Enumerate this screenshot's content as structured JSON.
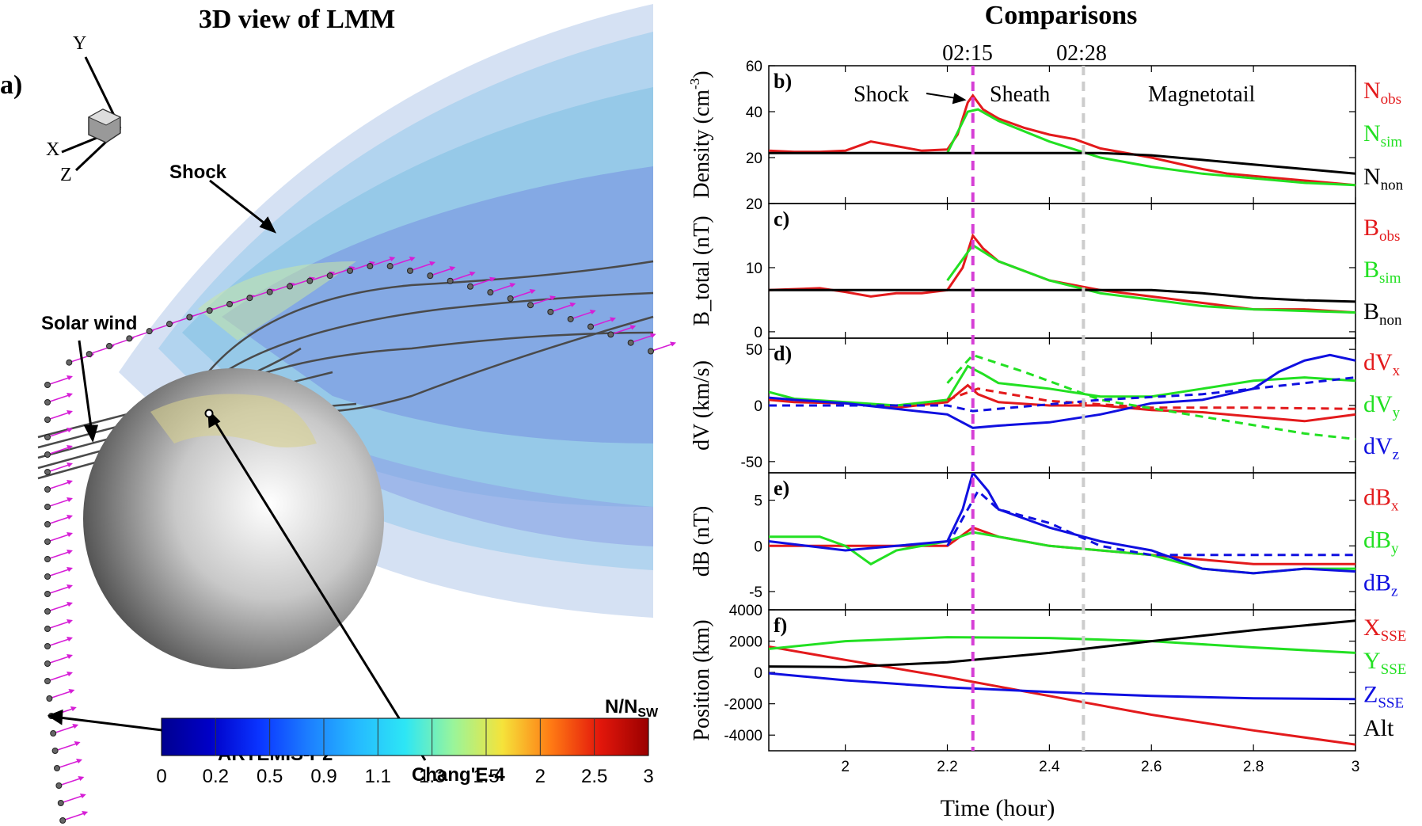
{
  "left_panel": {
    "title": "3D view of LMM",
    "panel_label": "a)",
    "axes": {
      "x": "X",
      "y": "Y",
      "z": "Z"
    },
    "labels": {
      "shock": "Shock",
      "solar_wind": "Solar wind",
      "artemis": "ARTEMIS-P2",
      "change4": "Chang'E-4"
    },
    "colorbar": {
      "title_main": "N/N",
      "title_sub": "SW",
      "ticks": [
        "0",
        "0.2",
        "0.5",
        "0.9",
        "1.1",
        "1.3",
        "1.5",
        "2",
        "2.5",
        "3"
      ],
      "colors": [
        "#00008f",
        "#0000c8",
        "#0a34ff",
        "#1c7dff",
        "#25b9ff",
        "#2de6f5",
        "#9af59a",
        "#f5e33a",
        "#ff7a14",
        "#e3170b",
        "#9a0000"
      ]
    }
  },
  "right_panel": {
    "title": "Comparisons",
    "time_marks": [
      "02:15",
      "02:28"
    ],
    "region_labels": {
      "shock": "Shock",
      "sheath": "Sheath",
      "magnetotail": "Magnetotail"
    },
    "xlabel": "Time (hour)"
  },
  "chart_data": [
    {
      "type": "line",
      "panel": "b)",
      "ylabel": "Density (cm",
      "ylabel_sup": "-3",
      "ylim": [
        0,
        60
      ],
      "yticks": [
        "20",
        "40",
        "60"
      ],
      "x": [
        1.85,
        3.0
      ],
      "xticks": [
        "2",
        "2.2",
        "2.4",
        "2.6",
        "2.8",
        "3"
      ],
      "vlines": [
        {
          "x": 2.25,
          "label": "02:15",
          "color": "#d63fd6"
        },
        {
          "x": 2.4667,
          "label": "02:28",
          "color": "#cccccc"
        }
      ],
      "series": [
        {
          "name": "N",
          "sub": "obs",
          "color": "#e31a1c",
          "points": [
            [
              1.85,
              23
            ],
            [
              1.9,
              22.5
            ],
            [
              1.95,
              22.5
            ],
            [
              2.0,
              23
            ],
            [
              2.05,
              27
            ],
            [
              2.1,
              25
            ],
            [
              2.15,
              23
            ],
            [
              2.2,
              23.5
            ],
            [
              2.22,
              30
            ],
            [
              2.24,
              44
            ],
            [
              2.25,
              47
            ],
            [
              2.27,
              41
            ],
            [
              2.3,
              37
            ],
            [
              2.35,
              33
            ],
            [
              2.4,
              30
            ],
            [
              2.45,
              28
            ],
            [
              2.5,
              24
            ],
            [
              2.6,
              20
            ],
            [
              2.7,
              15
            ],
            [
              2.75,
              13
            ],
            [
              2.8,
              12
            ],
            [
              2.9,
              10
            ],
            [
              3.0,
              8
            ]
          ]
        },
        {
          "name": "N",
          "sub": "sim",
          "color": "#22e022",
          "points": [
            [
              2.2,
              22
            ],
            [
              2.24,
              40
            ],
            [
              2.26,
              41
            ],
            [
              2.3,
              36
            ],
            [
              2.4,
              27
            ],
            [
              2.5,
              20
            ],
            [
              2.6,
              16
            ],
            [
              2.7,
              13
            ],
            [
              2.8,
              11
            ],
            [
              2.9,
              9
            ],
            [
              3.0,
              8
            ]
          ]
        },
        {
          "name": "N",
          "sub": "non",
          "color": "#000000",
          "points": [
            [
              1.85,
              22
            ],
            [
              2.5,
              22
            ],
            [
              2.6,
              21
            ],
            [
              2.7,
              19
            ],
            [
              2.8,
              17
            ],
            [
              2.9,
              15
            ],
            [
              3.0,
              13
            ]
          ]
        }
      ]
    },
    {
      "type": "line",
      "panel": "c)",
      "ylabel": "B_total (nT)",
      "ylim": [
        -1,
        20
      ],
      "yticks": [
        "0",
        "10",
        "20"
      ],
      "series": [
        {
          "name": "B",
          "sub": "obs",
          "color": "#e31a1c",
          "points": [
            [
              1.85,
              6.5
            ],
            [
              1.95,
              6.8
            ],
            [
              2.0,
              6.2
            ],
            [
              2.05,
              5.5
            ],
            [
              2.1,
              6
            ],
            [
              2.15,
              6
            ],
            [
              2.2,
              6.5
            ],
            [
              2.23,
              10
            ],
            [
              2.25,
              15
            ],
            [
              2.27,
              13
            ],
            [
              2.3,
              11
            ],
            [
              2.4,
              8
            ],
            [
              2.5,
              6.5
            ],
            [
              2.6,
              5.5
            ],
            [
              2.7,
              4.5
            ],
            [
              2.8,
              3.5
            ],
            [
              2.9,
              3.5
            ],
            [
              3.0,
              3
            ]
          ]
        },
        {
          "name": "B",
          "sub": "sim",
          "color": "#22e022",
          "points": [
            [
              2.2,
              8
            ],
            [
              2.25,
              13.5
            ],
            [
              2.3,
              11
            ],
            [
              2.4,
              8
            ],
            [
              2.5,
              6
            ],
            [
              2.6,
              5
            ],
            [
              2.7,
              4
            ],
            [
              2.8,
              3.5
            ],
            [
              3.0,
              3
            ]
          ]
        },
        {
          "name": "B",
          "sub": "non",
          "color": "#000000",
          "points": [
            [
              1.85,
              6.5
            ],
            [
              2.6,
              6.5
            ],
            [
              2.7,
              6
            ],
            [
              2.8,
              5.3
            ],
            [
              2.9,
              4.9
            ],
            [
              3.0,
              4.7
            ]
          ]
        }
      ]
    },
    {
      "type": "line",
      "panel": "d)",
      "ylabel": "dV (km/s)",
      "ylim": [
        -60,
        60
      ],
      "yticks": [
        "-50",
        "0",
        "50"
      ],
      "series": [
        {
          "name": "dV",
          "sub": "x",
          "color": "#e31a1c",
          "points": [
            [
              1.85,
              5
            ],
            [
              1.9,
              3
            ],
            [
              2.0,
              2
            ],
            [
              2.1,
              -2
            ],
            [
              2.2,
              3
            ],
            [
              2.24,
              18
            ],
            [
              2.26,
              10
            ],
            [
              2.3,
              3
            ],
            [
              2.4,
              0
            ],
            [
              2.5,
              0
            ],
            [
              2.6,
              -4
            ],
            [
              2.7,
              -6
            ],
            [
              2.8,
              -10
            ],
            [
              2.9,
              -14
            ],
            [
              3.0,
              -8
            ]
          ]
        },
        {
          "name": "dV",
          "sub": "y",
          "color": "#22e022",
          "points": [
            [
              1.85,
              12
            ],
            [
              1.9,
              6
            ],
            [
              2.0,
              3
            ],
            [
              2.1,
              0
            ],
            [
              2.2,
              5
            ],
            [
              2.24,
              35
            ],
            [
              2.27,
              28
            ],
            [
              2.3,
              20
            ],
            [
              2.4,
              15
            ],
            [
              2.5,
              8
            ],
            [
              2.6,
              8
            ],
            [
              2.7,
              15
            ],
            [
              2.8,
              22
            ],
            [
              2.9,
              25
            ],
            [
              3.0,
              22
            ]
          ]
        },
        {
          "name": "dV",
          "sub": "z",
          "color": "#1010e0",
          "points": [
            [
              1.85,
              7
            ],
            [
              1.9,
              5
            ],
            [
              2.0,
              2
            ],
            [
              2.1,
              -3
            ],
            [
              2.2,
              -8
            ],
            [
              2.25,
              -20
            ],
            [
              2.3,
              -18
            ],
            [
              2.4,
              -15
            ],
            [
              2.5,
              -8
            ],
            [
              2.6,
              2
            ],
            [
              2.7,
              5
            ],
            [
              2.75,
              10
            ],
            [
              2.8,
              15
            ],
            [
              2.85,
              30
            ],
            [
              2.9,
              40
            ],
            [
              2.95,
              45
            ],
            [
              3.0,
              40
            ]
          ]
        },
        {
          "name": "dV",
          "sub": "x sim",
          "color": "#e31a1c",
          "dashed": true,
          "points": [
            [
              2.2,
              5
            ],
            [
              2.26,
              15
            ],
            [
              2.4,
              4
            ],
            [
              2.6,
              -2
            ],
            [
              2.8,
              -2
            ],
            [
              3.0,
              -3
            ]
          ]
        },
        {
          "name": "dV",
          "sub": "y sim",
          "color": "#22e022",
          "dashed": true,
          "points": [
            [
              2.2,
              20
            ],
            [
              2.25,
              45
            ],
            [
              2.35,
              30
            ],
            [
              2.5,
              5
            ],
            [
              2.7,
              -10
            ],
            [
              2.9,
              -25
            ],
            [
              3.0,
              -30
            ]
          ]
        },
        {
          "name": "dV",
          "sub": "z sim",
          "color": "#1010e0",
          "dashed": true,
          "points": [
            [
              1.85,
              0
            ],
            [
              2.2,
              0
            ],
            [
              2.25,
              -5
            ],
            [
              2.5,
              5
            ],
            [
              2.7,
              10
            ],
            [
              2.9,
              20
            ],
            [
              3.0,
              25
            ]
          ]
        }
      ]
    },
    {
      "type": "line",
      "panel": "e)",
      "ylabel": "dB (nT)",
      "ylim": [
        -7,
        8
      ],
      "yticks": [
        "-5",
        "0",
        "5"
      ],
      "series": [
        {
          "name": "dB",
          "sub": "x",
          "color": "#e31a1c",
          "points": [
            [
              1.85,
              0
            ],
            [
              2.0,
              0
            ],
            [
              2.2,
              0
            ],
            [
              2.25,
              2
            ],
            [
              2.3,
              1
            ],
            [
              2.4,
              0
            ],
            [
              2.5,
              -0.5
            ],
            [
              2.6,
              -1
            ],
            [
              2.7,
              -1.5
            ],
            [
              2.8,
              -2
            ],
            [
              2.9,
              -2
            ],
            [
              3.0,
              -2
            ]
          ]
        },
        {
          "name": "dB",
          "sub": "y",
          "color": "#22e022",
          "points": [
            [
              1.85,
              1
            ],
            [
              1.95,
              1
            ],
            [
              2.0,
              0
            ],
            [
              2.05,
              -2
            ],
            [
              2.1,
              -0.5
            ],
            [
              2.2,
              0.5
            ],
            [
              2.25,
              1.5
            ],
            [
              2.3,
              1
            ],
            [
              2.4,
              0
            ],
            [
              2.5,
              -0.5
            ],
            [
              2.6,
              -1
            ],
            [
              2.7,
              -2.5
            ],
            [
              2.8,
              -3
            ],
            [
              2.9,
              -2.5
            ],
            [
              3.0,
              -2.5
            ]
          ]
        },
        {
          "name": "dB",
          "sub": "z",
          "color": "#1010e0",
          "points": [
            [
              1.85,
              0.5
            ],
            [
              2.0,
              -0.5
            ],
            [
              2.1,
              0
            ],
            [
              2.2,
              0.5
            ],
            [
              2.23,
              4
            ],
            [
              2.25,
              8
            ],
            [
              2.28,
              6
            ],
            [
              2.3,
              4
            ],
            [
              2.4,
              2
            ],
            [
              2.5,
              0.5
            ],
            [
              2.6,
              -0.5
            ],
            [
              2.7,
              -2.5
            ],
            [
              2.8,
              -3
            ],
            [
              2.9,
              -2.5
            ],
            [
              3.0,
              -2.8
            ]
          ]
        },
        {
          "name": "dB",
          "sub": "sim",
          "color": "#1010e0",
          "dashed": true,
          "points": [
            [
              2.2,
              0
            ],
            [
              2.26,
              6
            ],
            [
              2.3,
              4
            ],
            [
              2.4,
              2.5
            ],
            [
              2.5,
              0
            ],
            [
              2.6,
              -1
            ],
            [
              2.8,
              -1
            ],
            [
              3.0,
              -1
            ]
          ]
        }
      ]
    },
    {
      "type": "line",
      "panel": "f)",
      "ylabel": "Position (km)",
      "ylim": [
        -5000,
        4000
      ],
      "yticks": [
        "-4000",
        "-2000",
        "0",
        "2000",
        "4000"
      ],
      "series": [
        {
          "name": "X",
          "sub": "SSE",
          "color": "#e31a1c",
          "points": [
            [
              1.85,
              1650
            ],
            [
              2.0,
              800
            ],
            [
              2.2,
              -300
            ],
            [
              2.4,
              -1500
            ],
            [
              2.6,
              -2700
            ],
            [
              2.8,
              -3700
            ],
            [
              3.0,
              -4600
            ]
          ]
        },
        {
          "name": "Y",
          "sub": "SSE",
          "color": "#22e022",
          "points": [
            [
              1.85,
              1500
            ],
            [
              2.0,
              2000
            ],
            [
              2.2,
              2250
            ],
            [
              2.4,
              2200
            ],
            [
              2.6,
              2000
            ],
            [
              2.8,
              1600
            ],
            [
              3.0,
              1250
            ]
          ]
        },
        {
          "name": "Z",
          "sub": "SSE",
          "color": "#1010e0",
          "points": [
            [
              1.85,
              -50
            ],
            [
              2.0,
              -500
            ],
            [
              2.2,
              -950
            ],
            [
              2.4,
              -1250
            ],
            [
              2.6,
              -1500
            ],
            [
              2.8,
              -1650
            ],
            [
              3.0,
              -1700
            ]
          ]
        },
        {
          "name": "Alt",
          "sub": "",
          "color": "#000000",
          "points": [
            [
              1.85,
              380
            ],
            [
              2.0,
              350
            ],
            [
              2.2,
              650
            ],
            [
              2.4,
              1250
            ],
            [
              2.6,
              2000
            ],
            [
              2.8,
              2700
            ],
            [
              3.0,
              3300
            ]
          ]
        }
      ]
    }
  ]
}
